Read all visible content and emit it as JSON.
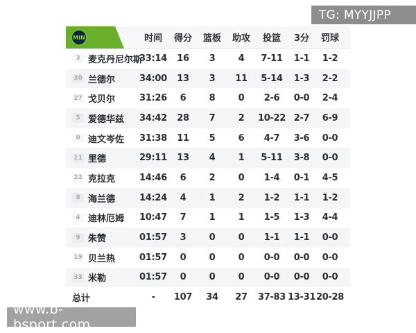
{
  "watermarks": {
    "top": "TG: MYYJJPP",
    "bottom": "www.b-bsport.com"
  },
  "team": {
    "abbr": "MIN"
  },
  "colors": {
    "team_green": "#69af28",
    "logo_navy": "#0e2340",
    "logo_text_green": "#8bd23e",
    "row_stripe": "#f4f5f7",
    "watermark_gray": "#8e8e8e"
  },
  "table": {
    "columns": [
      "时间",
      "得分",
      "篮板",
      "助攻",
      "投篮",
      "3分",
      "罚球"
    ],
    "players": [
      {
        "number": "3",
        "name": "麦克丹尼尔斯",
        "time": "33:14",
        "pts": "16",
        "reb": "3",
        "ast": "4",
        "fg": "7-11",
        "tp": "1-1",
        "ft": "1-2"
      },
      {
        "number": "30",
        "name": "兰德尔",
        "time": "34:00",
        "pts": "13",
        "reb": "3",
        "ast": "11",
        "fg": "5-14",
        "tp": "1-3",
        "ft": "2-2"
      },
      {
        "number": "27",
        "name": "戈贝尔",
        "time": "31:26",
        "pts": "6",
        "reb": "8",
        "ast": "0",
        "fg": "2-6",
        "tp": "0-0",
        "ft": "2-4"
      },
      {
        "number": "5",
        "name": "爱德华兹",
        "time": "34:42",
        "pts": "28",
        "reb": "7",
        "ast": "2",
        "fg": "10-22",
        "tp": "2-7",
        "ft": "6-9"
      },
      {
        "number": "0",
        "name": "迪文岑佐",
        "time": "31:38",
        "pts": "11",
        "reb": "5",
        "ast": "6",
        "fg": "4-7",
        "tp": "3-6",
        "ft": "0-0"
      },
      {
        "number": "11",
        "name": "里德",
        "time": "29:11",
        "pts": "13",
        "reb": "4",
        "ast": "1",
        "fg": "5-11",
        "tp": "3-8",
        "ft": "0-0"
      },
      {
        "number": "22",
        "name": "克拉克",
        "time": "14:46",
        "pts": "6",
        "reb": "2",
        "ast": "0",
        "fg": "1-4",
        "tp": "0-1",
        "ft": "4-5"
      },
      {
        "number": "8",
        "name": "海兰德",
        "time": "14:24",
        "pts": "4",
        "reb": "1",
        "ast": "2",
        "fg": "1-2",
        "tp": "1-1",
        "ft": "1-2"
      },
      {
        "number": "4",
        "name": "迪林厄姆",
        "time": "10:47",
        "pts": "7",
        "reb": "1",
        "ast": "1",
        "fg": "1-5",
        "tp": "1-3",
        "ft": "4-4"
      },
      {
        "number": "9",
        "name": "朱赞",
        "time": "01:57",
        "pts": "3",
        "reb": "0",
        "ast": "0",
        "fg": "1-1",
        "tp": "1-1",
        "ft": "0-0"
      },
      {
        "number": "19",
        "name": "贝兰热",
        "time": "01:57",
        "pts": "0",
        "reb": "0",
        "ast": "0",
        "fg": "0-0",
        "tp": "0-0",
        "ft": "0-0"
      },
      {
        "number": "33",
        "name": "米勒",
        "time": "01:57",
        "pts": "0",
        "reb": "0",
        "ast": "0",
        "fg": "0-0",
        "tp": "0-0",
        "ft": "0-0"
      }
    ],
    "total": {
      "label": "总计",
      "time": "-",
      "pts": "107",
      "reb": "34",
      "ast": "27",
      "fg": "37-83",
      "tp": "13-31",
      "ft": "20-28"
    }
  }
}
